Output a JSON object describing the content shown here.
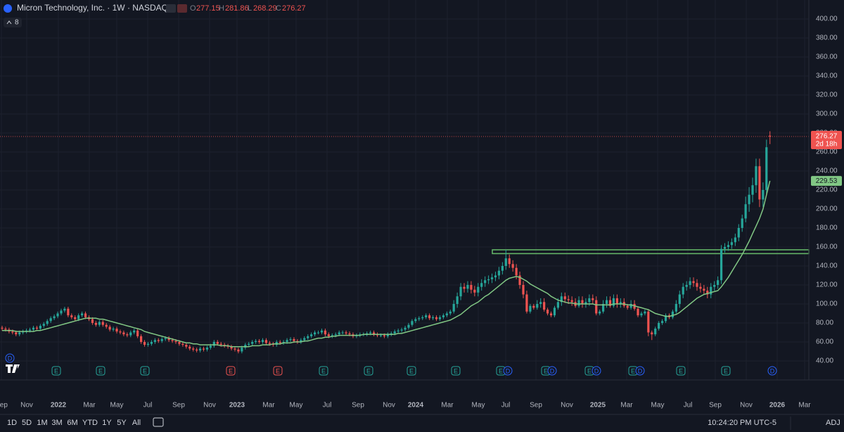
{
  "header": {
    "title": "Micron Technology, Inc. · 1W · NASDAQ",
    "ohlc_labels": [
      "O",
      "H",
      "L",
      "C"
    ],
    "indicator_count": "8"
  },
  "chart_data": {
    "type": "candlestick",
    "up_color": "#26a69a",
    "down_color": "#ef5350",
    "grid": true,
    "open": [
      75,
      74,
      73,
      71,
      70,
      68,
      70,
      71,
      72,
      73,
      75,
      74,
      77,
      79,
      82,
      85,
      87,
      90,
      93,
      95,
      88,
      86,
      84,
      88,
      90,
      86,
      84,
      80,
      78,
      81,
      78,
      76,
      73,
      74,
      71,
      70,
      68,
      67,
      70,
      72,
      66,
      60,
      57,
      58,
      60,
      62,
      61,
      63,
      64,
      62,
      61,
      60,
      58,
      57,
      55,
      53,
      52,
      51,
      53,
      52,
      54,
      56,
      60,
      58,
      57,
      56,
      55,
      53,
      52,
      50,
      54,
      57,
      58,
      60,
      61,
      60,
      62,
      59,
      58,
      57,
      60,
      59,
      60,
      62,
      63,
      61,
      60,
      62,
      64,
      66,
      68,
      70,
      70,
      72,
      68,
      66,
      67,
      68,
      70,
      70,
      69,
      68,
      66,
      67,
      68,
      68,
      69,
      70,
      68,
      67,
      67,
      66,
      68,
      69,
      71,
      72,
      73,
      75,
      78,
      82,
      84,
      85,
      86,
      88,
      85,
      86,
      84,
      86,
      88,
      90,
      92,
      100,
      108,
      118,
      116,
      120,
      115,
      112,
      118,
      122,
      125,
      126,
      128,
      130,
      135,
      140,
      148,
      142,
      138,
      130,
      120,
      110,
      92,
      98,
      96,
      100,
      102,
      94,
      90,
      88,
      96,
      102,
      108,
      105,
      104,
      102,
      98,
      104,
      100,
      102,
      106,
      104,
      90,
      92,
      100,
      104,
      98,
      106,
      100,
      102,
      98,
      96,
      100,
      95,
      88,
      90,
      92,
      70,
      68,
      74,
      80,
      82,
      88,
      86,
      92,
      100,
      110,
      118,
      120,
      124,
      122,
      118,
      116,
      114,
      110,
      118,
      120,
      125,
      158,
      160,
      162,
      165,
      170,
      180,
      190,
      205,
      215,
      225,
      245,
      210,
      220,
      277.15
    ],
    "high": [
      77,
      76,
      75,
      73,
      72,
      72,
      73,
      74,
      75,
      77,
      77,
      79,
      81,
      84,
      87,
      89,
      92,
      95,
      97,
      97,
      90,
      88,
      90,
      92,
      92,
      88,
      86,
      82,
      83,
      83,
      80,
      78,
      76,
      76,
      73,
      72,
      70,
      72,
      74,
      74,
      68,
      62,
      60,
      62,
      64,
      64,
      65,
      66,
      66,
      64,
      63,
      62,
      60,
      59,
      57,
      55,
      54,
      55,
      55,
      56,
      58,
      62,
      62,
      60,
      59,
      58,
      57,
      55,
      54,
      56,
      59,
      60,
      62,
      63,
      63,
      64,
      64,
      61,
      60,
      62,
      62,
      62,
      64,
      65,
      65,
      63,
      64,
      66,
      68,
      70,
      72,
      72,
      74,
      74,
      70,
      69,
      70,
      72,
      72,
      72,
      71,
      70,
      69,
      70,
      70,
      71,
      72,
      72,
      70,
      69,
      69,
      70,
      71,
      73,
      74,
      75,
      77,
      80,
      84,
      86,
      87,
      88,
      90,
      90,
      88,
      88,
      88,
      90,
      92,
      94,
      104,
      112,
      122,
      122,
      124,
      124,
      119,
      122,
      126,
      129,
      130,
      132,
      134,
      139,
      144,
      157,
      152,
      146,
      142,
      134,
      124,
      114,
      100,
      100,
      104,
      106,
      106,
      96,
      92,
      98,
      106,
      112,
      112,
      109,
      108,
      106,
      108,
      108,
      106,
      110,
      110,
      108,
      94,
      104,
      108,
      108,
      110,
      110,
      106,
      106,
      100,
      104,
      104,
      97,
      92,
      94,
      94,
      72,
      76,
      82,
      84,
      90,
      90,
      94,
      104,
      114,
      122,
      124,
      128,
      128,
      126,
      122,
      120,
      118,
      122,
      124,
      129,
      162,
      164,
      166,
      169,
      174,
      184,
      194,
      213,
      223,
      233,
      253,
      253,
      228,
      273,
      281.86
    ],
    "low": [
      72,
      71,
      69,
      68,
      66,
      66,
      68,
      69,
      70,
      71,
      72,
      72,
      75,
      77,
      80,
      83,
      85,
      88,
      91,
      86,
      84,
      82,
      82,
      86,
      84,
      82,
      78,
      76,
      76,
      76,
      74,
      71,
      71,
      69,
      68,
      66,
      65,
      65,
      68,
      64,
      58,
      55,
      55,
      56,
      58,
      59,
      59,
      61,
      60,
      59,
      58,
      56,
      55,
      53,
      51,
      50,
      49,
      49,
      50,
      50,
      52,
      54,
      56,
      55,
      54,
      53,
      51,
      50,
      48,
      48,
      52,
      55,
      56,
      58,
      58,
      58,
      57,
      56,
      55,
      55,
      57,
      57,
      58,
      60,
      59,
      58,
      58,
      60,
      62,
      64,
      66,
      68,
      68,
      66,
      64,
      64,
      65,
      66,
      68,
      67,
      66,
      64,
      64,
      65,
      66,
      66,
      67,
      66,
      65,
      65,
      64,
      64,
      66,
      67,
      69,
      70,
      71,
      73,
      76,
      80,
      82,
      83,
      84,
      83,
      83,
      82,
      82,
      84,
      86,
      88,
      90,
      96,
      104,
      112,
      112,
      111,
      108,
      108,
      114,
      118,
      121,
      122,
      124,
      126,
      131,
      136,
      138,
      134,
      126,
      116,
      106,
      90,
      90,
      94,
      94,
      96,
      92,
      88,
      86,
      86,
      94,
      98,
      101,
      100,
      98,
      96,
      96,
      96,
      96,
      98,
      100,
      88,
      88,
      90,
      96,
      96,
      96,
      96,
      96,
      96,
      94,
      94,
      93,
      86,
      86,
      88,
      66,
      62,
      66,
      72,
      78,
      80,
      84,
      84,
      90,
      96,
      106,
      114,
      116,
      118,
      114,
      112,
      110,
      106,
      106,
      114,
      116,
      121,
      154,
      156,
      158,
      161,
      166,
      176,
      186,
      197,
      207,
      217,
      202,
      202,
      216,
      268.29
    ],
    "close": [
      74,
      73,
      71,
      70,
      68,
      70,
      71,
      72,
      73,
      75,
      74,
      77,
      79,
      82,
      85,
      87,
      90,
      93,
      95,
      88,
      86,
      84,
      88,
      90,
      86,
      84,
      80,
      78,
      81,
      78,
      76,
      73,
      74,
      71,
      70,
      68,
      67,
      70,
      72,
      66,
      60,
      57,
      58,
      60,
      62,
      61,
      63,
      64,
      62,
      61,
      60,
      58,
      57,
      55,
      53,
      52,
      51,
      53,
      52,
      54,
      56,
      60,
      58,
      57,
      56,
      55,
      53,
      52,
      50,
      54,
      57,
      58,
      60,
      61,
      60,
      62,
      59,
      58,
      57,
      60,
      59,
      60,
      62,
      63,
      61,
      60,
      62,
      64,
      66,
      68,
      70,
      70,
      72,
      68,
      66,
      67,
      68,
      70,
      70,
      69,
      68,
      66,
      67,
      68,
      68,
      69,
      70,
      68,
      67,
      67,
      66,
      68,
      69,
      71,
      72,
      73,
      75,
      78,
      82,
      84,
      85,
      86,
      88,
      85,
      86,
      84,
      86,
      88,
      90,
      92,
      100,
      108,
      118,
      116,
      120,
      115,
      112,
      118,
      122,
      125,
      126,
      128,
      130,
      135,
      140,
      148,
      142,
      138,
      130,
      120,
      110,
      92,
      98,
      96,
      100,
      102,
      94,
      90,
      88,
      96,
      102,
      108,
      105,
      104,
      102,
      98,
      104,
      100,
      102,
      106,
      104,
      90,
      92,
      100,
      104,
      98,
      106,
      100,
      102,
      98,
      96,
      100,
      95,
      88,
      90,
      92,
      70,
      68,
      74,
      80,
      82,
      88,
      86,
      92,
      100,
      110,
      118,
      120,
      124,
      122,
      118,
      116,
      114,
      110,
      118,
      120,
      125,
      158,
      160,
      162,
      165,
      170,
      180,
      190,
      205,
      215,
      225,
      245,
      210,
      220,
      265,
      276.27
    ],
    "ma": {
      "color": "#81c784",
      "values": [
        72,
        72,
        72,
        72,
        71,
        71,
        71,
        71,
        71,
        71,
        72,
        72,
        73,
        74,
        75,
        76,
        77,
        78,
        79,
        80,
        81,
        82,
        83,
        84,
        85,
        85,
        85,
        85,
        84,
        84,
        83,
        82,
        81,
        80,
        79,
        78,
        77,
        76,
        75,
        74,
        73,
        71,
        70,
        69,
        68,
        67,
        66,
        65,
        64,
        63,
        62,
        61,
        60,
        59,
        59,
        58,
        58,
        57,
        57,
        57,
        57,
        57,
        57,
        56,
        56,
        56,
        55,
        55,
        55,
        55,
        55,
        55,
        56,
        56,
        56,
        57,
        57,
        57,
        58,
        58,
        58,
        59,
        59,
        59,
        60,
        60,
        60,
        61,
        61,
        62,
        63,
        64,
        64,
        65,
        65,
        66,
        66,
        67,
        67,
        67,
        67,
        67,
        67,
        67,
        68,
        68,
        68,
        68,
        68,
        68,
        68,
        68,
        68,
        68,
        69,
        69,
        70,
        71,
        72,
        73,
        74,
        75,
        76,
        77,
        78,
        79,
        80,
        81,
        82,
        83,
        85,
        87,
        89,
        92,
        95,
        98,
        100,
        102,
        105,
        108,
        110,
        113,
        116,
        119,
        122,
        125,
        127,
        128,
        129,
        128,
        126,
        124,
        121,
        119,
        117,
        115,
        113,
        111,
        108,
        106,
        104,
        103,
        102,
        101,
        101,
        100,
        100,
        100,
        100,
        100,
        100,
        99,
        99,
        99,
        99,
        99,
        100,
        100,
        100,
        100,
        99,
        99,
        98,
        97,
        96,
        95,
        94,
        92,
        90,
        89,
        88,
        87,
        87,
        88,
        89,
        91,
        94,
        97,
        100,
        103,
        106,
        108,
        110,
        111,
        112,
        113,
        114,
        118,
        123,
        128,
        134,
        140,
        146,
        152,
        159,
        166,
        174,
        182,
        190,
        200,
        215,
        229.53
      ]
    },
    "zone": {
      "values": [
        153,
        157
      ],
      "color": "#66bb6a"
    },
    "countdown": "2d 18h",
    "ylim": [
      20,
      420
    ],
    "yticks": [
      {
        "value": 40,
        "label": "40.00"
      },
      {
        "value": 60,
        "label": "60.00"
      },
      {
        "value": 80,
        "label": "80.00"
      },
      {
        "value": 100,
        "label": "100.00"
      },
      {
        "value": 120,
        "label": "120.00"
      },
      {
        "value": 140,
        "label": "140.00"
      },
      {
        "value": 160,
        "label": "160.00"
      },
      {
        "value": 180,
        "label": "180.00"
      },
      {
        "value": 200,
        "label": "200.00"
      },
      {
        "value": 220,
        "label": "220.00"
      },
      {
        "value": 240,
        "label": "240.00"
      },
      {
        "value": 260,
        "label": "260.00"
      },
      {
        "value": 280,
        "label": "280.00"
      },
      {
        "value": 300,
        "label": "300.00"
      },
      {
        "value": 320,
        "label": "320.00"
      },
      {
        "value": 340,
        "label": "340.00"
      },
      {
        "value": 360,
        "label": "360.00"
      },
      {
        "value": 380,
        "label": "380.00"
      },
      {
        "value": 400,
        "label": "400.00"
      }
    ],
    "time_labels": [
      "Sep",
      "Nov",
      "2022",
      "Mar",
      "May",
      "Jul",
      "Sep",
      "Nov",
      "2023",
      "Mar",
      "May",
      "Jul",
      "Sep",
      "Nov",
      "2024",
      "Mar",
      "May",
      "Jul",
      "Sep",
      "Nov",
      "2025",
      "Mar",
      "May",
      "Jul",
      "Sep",
      "Nov",
      "2026",
      "Mar"
    ],
    "events": [
      {
        "label": "D",
        "color": "#2962ff"
      },
      {
        "label": "E",
        "color": "#26a69a"
      },
      {
        "label": "E",
        "color": "#26a69a"
      },
      {
        "label": "E",
        "color": "#26a69a"
      },
      {
        "label": "E",
        "color": "#ef5350"
      },
      {
        "label": "E",
        "color": "#ef5350"
      },
      {
        "label": "E",
        "color": "#26a69a"
      },
      {
        "label": "E",
        "color": "#26a69a"
      },
      {
        "label": "E",
        "color": "#26a69a"
      },
      {
        "label": "E",
        "color": "#26a69a"
      },
      {
        "label": "E",
        "color": "#26a69a"
      },
      {
        "label": "D",
        "color": "#2962ff"
      },
      {
        "label": "E",
        "color": "#26a69a"
      },
      {
        "label": "D",
        "color": "#2962ff"
      },
      {
        "label": "E",
        "color": "#26a69a"
      },
      {
        "label": "D",
        "color": "#2962ff"
      },
      {
        "label": "E",
        "color": "#26a69a"
      },
      {
        "label": "D",
        "color": "#2962ff"
      },
      {
        "label": "E",
        "color": "#26a69a"
      },
      {
        "label": "E",
        "color": "#26a69a"
      },
      {
        "label": "D",
        "color": "#2962ff"
      }
    ]
  },
  "toolbar": {
    "ranges": [
      "1D",
      "5D",
      "1M",
      "3M",
      "6M",
      "YTD",
      "1Y",
      "5Y",
      "All"
    ],
    "clock": "10:24:20 PM UTC-5",
    "adj": "ADJ"
  }
}
